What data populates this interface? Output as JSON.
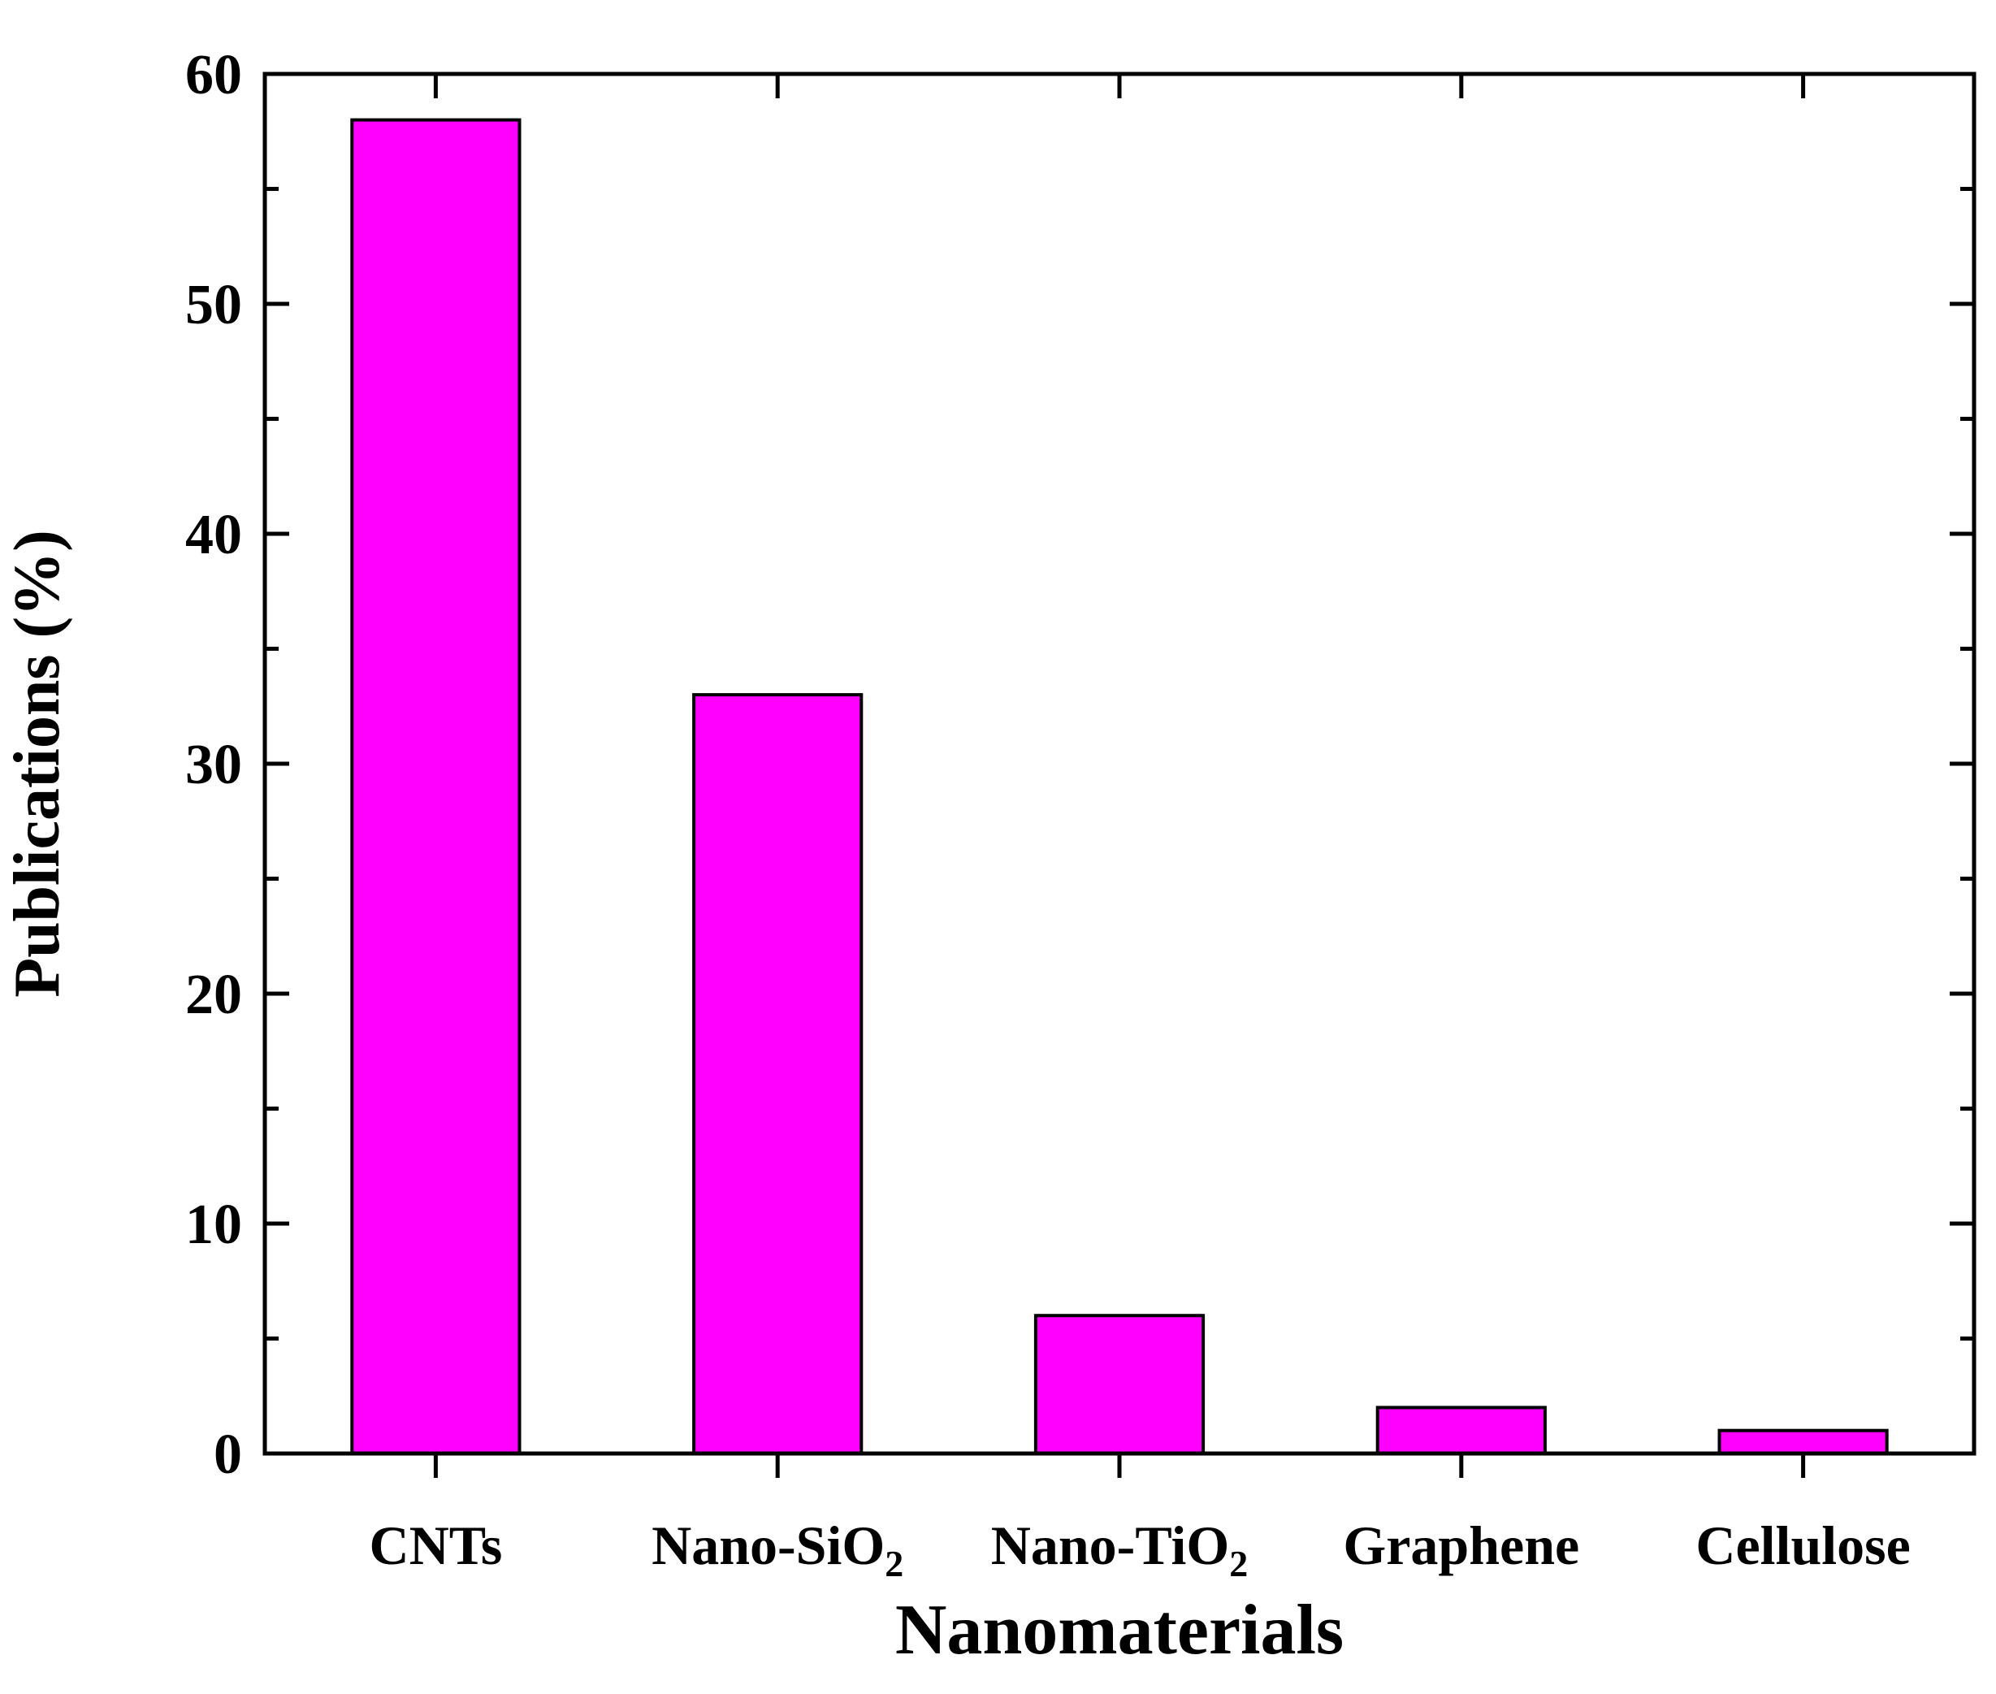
{
  "chart_data": {
    "type": "bar",
    "title": "",
    "xlabel": "Nanomaterials",
    "ylabel": "Publications (%)",
    "categories": [
      "CNTs",
      "Nano-SiO₂",
      "Nano-TiO₂",
      "Graphene",
      "Cellulose"
    ],
    "values": [
      58,
      33,
      6,
      2,
      1
    ],
    "ylim": [
      0,
      60
    ],
    "ytick_major_step": 10,
    "ytick_minor_step": 5,
    "ytick_labels": [
      "0",
      "10",
      "20",
      "30",
      "40",
      "50",
      "60"
    ],
    "bar_color": "#FF00FF",
    "bar_edge_color": "#000000",
    "frame_color": "#000000",
    "background_color": "#FFFFFF",
    "grid": false,
    "legend_position": "none"
  }
}
